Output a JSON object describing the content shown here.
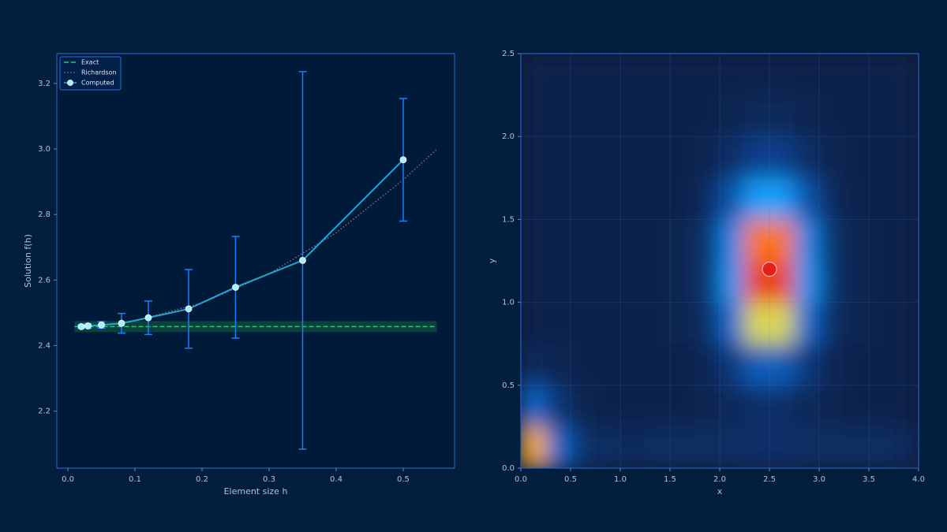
{
  "chart_data": [
    {
      "type": "line",
      "xlabel": "Element size h",
      "ylabel": "Solution f(h)",
      "xlim": [
        -0.0165,
        0.5765
      ],
      "ylim": [
        2.026,
        3.291
      ],
      "xticks": [
        {
          "value": 0,
          "label": "0.0"
        },
        0.1,
        0.2,
        0.3,
        0.4,
        0.5
      ],
      "yticks": [
        2.2,
        2.4,
        2.6,
        2.8,
        {
          "value": 3,
          "label": "3.0"
        },
        3.2
      ],
      "legend": "upper left",
      "series": [
        {
          "name": "Exact",
          "color": "#2ec27e",
          "style": "dashed",
          "band": [
            2.441,
            2.475
          ],
          "band_color": "#0f4a3e",
          "x": [
            0.01,
            0.55
          ],
          "values": [
            2.458,
            2.458
          ]
        },
        {
          "name": "Richardson",
          "color": "#7a6a9a",
          "style": "dotted",
          "x": [
            0.02,
            0.05,
            0.1,
            0.2,
            0.3,
            0.4,
            0.5,
            0.55
          ],
          "values": [
            2.459,
            2.462,
            2.476,
            2.53,
            2.619,
            2.744,
            2.906,
            2.999
          ]
        },
        {
          "name": "Computed",
          "color": "#22a6d0",
          "style": "solid",
          "marker_color": "#a8f0ff",
          "error_color": "#1a7fff",
          "x": [
            0.02,
            0.03,
            0.05,
            0.08,
            0.12,
            0.18,
            0.25,
            0.35,
            0.5
          ],
          "values": [
            2.458,
            2.46,
            2.463,
            2.468,
            2.485,
            2.512,
            2.578,
            2.66,
            2.967
          ],
          "errors": [
            0.005,
            0.007,
            0.01,
            0.03,
            0.051,
            0.12,
            0.155,
            0.576,
            0.187
          ]
        }
      ]
    },
    {
      "type": "heatmap",
      "xlabel": "x",
      "ylabel": "y",
      "xlim": [
        0,
        4
      ],
      "ylim": [
        0,
        2.5
      ],
      "xticks": [
        {
          "value": 0,
          "label": "0.0"
        },
        0.5,
        {
          "value": 1,
          "label": "1.0"
        },
        1.5,
        {
          "value": 2,
          "label": "2.0"
        },
        2.5,
        {
          "value": 3,
          "label": "3.0"
        },
        3.5,
        {
          "value": 4,
          "label": "4.0"
        }
      ],
      "yticks": [
        {
          "value": 0,
          "label": "0.0"
        },
        0.5,
        {
          "value": 1,
          "label": "1.0"
        },
        1.5,
        {
          "value": 2,
          "label": "2.0"
        },
        2.5
      ],
      "colormap": [
        "#081a36",
        "#0b3a80",
        "#0a6fd8",
        "#1aa6ff",
        "#ffe030",
        "#ff8010",
        "#e01010"
      ],
      "xbins": [
        0,
        0.25,
        0.5,
        0.75,
        1,
        1.25,
        1.5,
        1.75,
        2,
        2.25,
        2.5,
        2.75,
        3,
        3.25,
        3.5,
        3.75,
        4
      ],
      "ybins": [
        0,
        0.25,
        0.5,
        0.75,
        1,
        1.25,
        1.5,
        1.75,
        2,
        2.25,
        2.5
      ],
      "values": [
        [
          0.75,
          0.31,
          0.12,
          0.1,
          0.09,
          0.1,
          0.1,
          0.1,
          0.1,
          0.11,
          0.11,
          0.1,
          0.1,
          0.1,
          0.1,
          0.09
        ],
        [
          0.31,
          0.14,
          0.06,
          0.05,
          0.05,
          0.05,
          0.05,
          0.06,
          0.08,
          0.11,
          0.11,
          0.08,
          0.06,
          0.05,
          0.05,
          0.05
        ],
        [
          0.09,
          0.06,
          0.05,
          0.05,
          0.05,
          0.05,
          0.05,
          0.07,
          0.16,
          0.28,
          0.28,
          0.16,
          0.07,
          0.05,
          0.05,
          0.05
        ],
        [
          0.05,
          0.05,
          0.05,
          0.05,
          0.05,
          0.05,
          0.06,
          0.1,
          0.32,
          0.64,
          0.64,
          0.32,
          0.1,
          0.06,
          0.05,
          0.05
        ],
        [
          0.05,
          0.05,
          0.05,
          0.05,
          0.05,
          0.05,
          0.06,
          0.13,
          0.45,
          0.93,
          0.93,
          0.45,
          0.13,
          0.06,
          0.05,
          0.05
        ],
        [
          0.05,
          0.05,
          0.05,
          0.05,
          0.05,
          0.05,
          0.06,
          0.12,
          0.41,
          0.85,
          0.85,
          0.41,
          0.12,
          0.06,
          0.05,
          0.05
        ],
        [
          0.05,
          0.05,
          0.05,
          0.05,
          0.05,
          0.05,
          0.05,
          0.09,
          0.25,
          0.48,
          0.48,
          0.25,
          0.09,
          0.05,
          0.05,
          0.05
        ],
        [
          0.05,
          0.05,
          0.05,
          0.05,
          0.05,
          0.05,
          0.05,
          0.06,
          0.11,
          0.19,
          0.19,
          0.11,
          0.06,
          0.05,
          0.05,
          0.05
        ],
        [
          0.05,
          0.05,
          0.05,
          0.05,
          0.05,
          0.05,
          0.05,
          0.05,
          0.06,
          0.08,
          0.08,
          0.06,
          0.05,
          0.05,
          0.05,
          0.05
        ],
        [
          0.05,
          0.05,
          0.05,
          0.05,
          0.05,
          0.05,
          0.05,
          0.05,
          0.05,
          0.05,
          0.05,
          0.05,
          0.05,
          0.05,
          0.05,
          0.05
        ]
      ],
      "marker": {
        "x": 2.5,
        "y": 1.2,
        "color": "#e01818"
      }
    }
  ]
}
